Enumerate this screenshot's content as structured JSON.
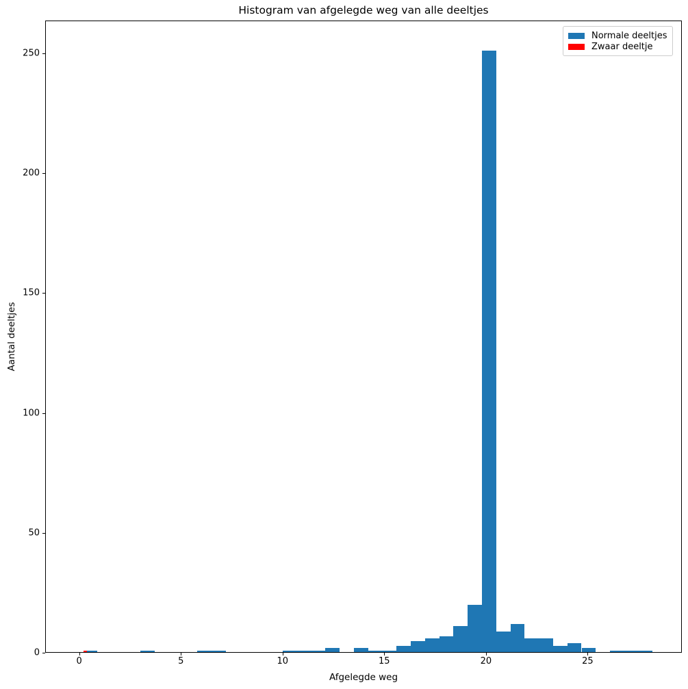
{
  "figure": {
    "background": "#ffffff",
    "spine_color": "#000000"
  },
  "chart_data": {
    "type": "bar",
    "subtype": "histogram",
    "title": "Histogram van afgelegde weg van alle deeltjes",
    "xlabel": "Afgelegde weg",
    "ylabel": "Aantal deeltjes",
    "xlim": [
      -1.673,
      29.63
    ],
    "ylim": [
      0,
      263.6
    ],
    "x_ticks": [
      0,
      5,
      10,
      15,
      20,
      25
    ],
    "y_ticks": [
      0,
      50,
      100,
      150,
      200,
      250
    ],
    "grid": false,
    "legend_position": "upper right",
    "legend": [
      {
        "label": "Normale deeltjes",
        "color": "#1f77b4"
      },
      {
        "label": "Zwaar deeltje",
        "color": "#ff0000"
      }
    ],
    "series": [
      {
        "name": "Normale deeltjes",
        "color": "#1f77b4",
        "bin_start": 0.2,
        "bin_width": 0.7,
        "counts": [
          1,
          0,
          0,
          0,
          1,
          0,
          0,
          0,
          1,
          1,
          0,
          0,
          0,
          0,
          1,
          1,
          1,
          2,
          0,
          2,
          1,
          1,
          3,
          5,
          6,
          7,
          11,
          20,
          251,
          9,
          12,
          6,
          6,
          3,
          4,
          2,
          0,
          1,
          1,
          1
        ]
      },
      {
        "name": "Zwaar deeltje",
        "color": "#ff0000",
        "bin_start": 0.2,
        "bin_width": 0.17,
        "counts": [
          1
        ]
      }
    ]
  }
}
